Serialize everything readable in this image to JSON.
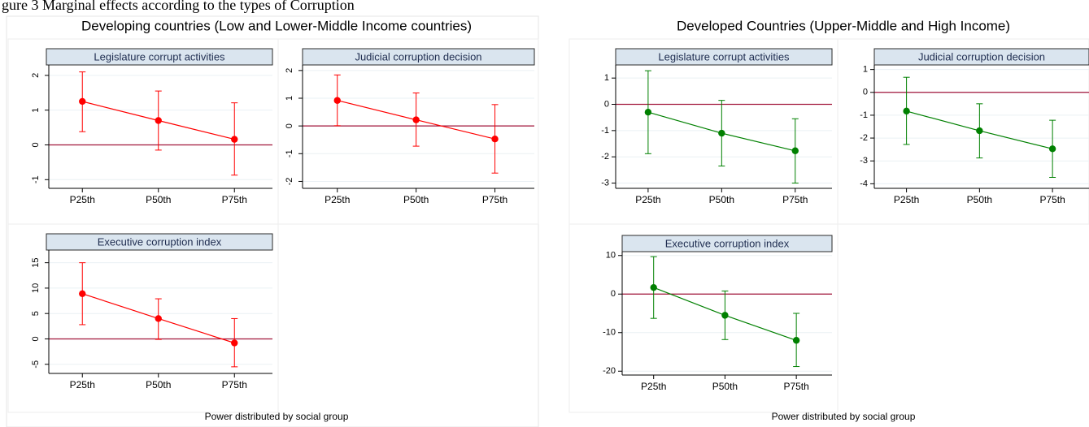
{
  "figure": {
    "caption": "gure 3 Marginal effects according to the types of Corruption"
  },
  "colors": {
    "developing": "#ff0000",
    "developed": "#008000",
    "zero_line": "#a1153a",
    "strip_fill": "#dae5ef",
    "gridline": "#eaf0f4"
  },
  "chart_data": [
    {
      "group_title": "Developing countries (Low and Lower-Middle Income countries)",
      "xlabel": "Power distributed by social group",
      "series_color": "developing",
      "panels": [
        {
          "type": "line",
          "title": "Legislature corrupt activities",
          "categories": [
            "P25th",
            "P50th",
            "P75th"
          ],
          "values": [
            1.25,
            0.7,
            0.16
          ],
          "ci_low": [
            0.38,
            -0.15,
            -0.87
          ],
          "ci_high": [
            2.1,
            1.55,
            1.21
          ],
          "ylim": [
            -1.25,
            2.3
          ],
          "yticks": [
            -1,
            0,
            1,
            2
          ],
          "ytick_labels": [
            "-1",
            "0",
            "1",
            "2"
          ],
          "refline": 0
        },
        {
          "type": "line",
          "title": "Judicial corruption decision",
          "categories": [
            "P25th",
            "P50th",
            "P75th"
          ],
          "values": [
            0.92,
            0.22,
            -0.47
          ],
          "ci_low": [
            0.01,
            -0.73,
            -1.7
          ],
          "ci_high": [
            1.84,
            1.19,
            0.77
          ],
          "ylim": [
            -2.25,
            2.2
          ],
          "yticks": [
            -2,
            -1,
            0,
            1,
            2
          ],
          "ytick_labels": [
            "-2",
            "-1",
            "0",
            "1",
            "2"
          ],
          "refline": 0
        },
        {
          "type": "line",
          "title": "Executive corruption index",
          "categories": [
            "P25th",
            "P50th",
            "P75th"
          ],
          "values": [
            8.9,
            4.0,
            -0.8
          ],
          "ci_low": [
            2.8,
            -0.1,
            -5.5
          ],
          "ci_high": [
            15.0,
            7.9,
            4.0
          ],
          "ylim": [
            -6.8,
            17.5
          ],
          "yticks": [
            -5,
            0,
            5,
            10,
            15
          ],
          "ytick_labels": [
            "-5",
            "0",
            "5",
            "10",
            "15"
          ],
          "refline": 0
        }
      ]
    },
    {
      "group_title": "Developed Countries (Upper-Middle and High Income)",
      "xlabel": "Power distributed by social group",
      "series_color": "developed",
      "panels": [
        {
          "type": "line",
          "title": "Legislature corrupt activities",
          "categories": [
            "P25th",
            "P50th",
            "P75th"
          ],
          "values": [
            -0.3,
            -1.1,
            -1.77
          ],
          "ci_low": [
            -1.88,
            -2.35,
            -3.0
          ],
          "ci_high": [
            1.28,
            0.15,
            -0.55
          ],
          "ylim": [
            -3.2,
            1.5
          ],
          "yticks": [
            -3,
            -2,
            -1,
            0,
            1
          ],
          "ytick_labels": [
            "-3",
            "-2",
            "-1",
            "0",
            "1"
          ],
          "refline": 0
        },
        {
          "type": "line",
          "title": "Judicial corruption decision",
          "categories": [
            "P25th",
            "P50th",
            "P75th"
          ],
          "values": [
            -0.82,
            -1.68,
            -2.47
          ],
          "ci_low": [
            -2.28,
            -2.87,
            -3.72
          ],
          "ci_high": [
            0.66,
            -0.5,
            -1.22
          ],
          "ylim": [
            -4.2,
            1.2
          ],
          "yticks": [
            -4,
            -3,
            -2,
            -1,
            0,
            1
          ],
          "ytick_labels": [
            "-4",
            "-3",
            "-2",
            "-1",
            "0",
            "1"
          ],
          "refline": 0
        },
        {
          "type": "line",
          "title": "Executive corruption index",
          "categories": [
            "P25th",
            "P50th",
            "P75th"
          ],
          "values": [
            1.7,
            -5.5,
            -12.0
          ],
          "ci_low": [
            -6.3,
            -11.8,
            -18.8
          ],
          "ci_high": [
            9.7,
            0.8,
            -5.0
          ],
          "ylim": [
            -21.0,
            11.0
          ],
          "yticks": [
            -20,
            -10,
            0,
            10
          ],
          "ytick_labels": [
            "-20",
            "-10",
            "0",
            "10"
          ],
          "refline": 0
        }
      ]
    }
  ]
}
